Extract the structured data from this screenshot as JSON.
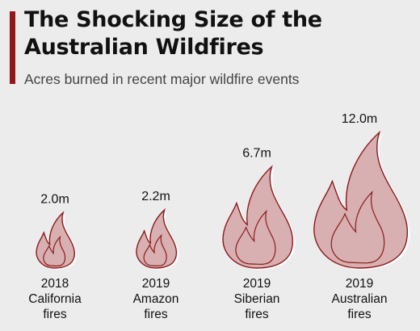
{
  "title": "The Shocking Size of the Australian Wildfires",
  "subtitle": "Acres burned in recent major wildfire events",
  "colors": {
    "accent": "#8c1a1a",
    "flame_fill": "#d8b0b2",
    "flame_outline": "#8c1a1a",
    "background": "#ececec"
  },
  "icon": "flame-icon",
  "chart_data": {
    "type": "bar",
    "unit": "million acres",
    "categories": [
      {
        "line1": "2018",
        "line2": "California",
        "line3": "fires"
      },
      {
        "line1": "2019",
        "line2": "Amazon",
        "line3": "fires"
      },
      {
        "line1": "2019",
        "line2": "Siberian",
        "line3": "fires"
      },
      {
        "line1": "2019",
        "line2": "Australian",
        "line3": "fires"
      }
    ],
    "values": [
      2.0,
      2.2,
      6.7,
      12.0
    ],
    "value_labels": [
      "2.0m",
      "2.2m",
      "6.7m",
      "12.0m"
    ]
  }
}
